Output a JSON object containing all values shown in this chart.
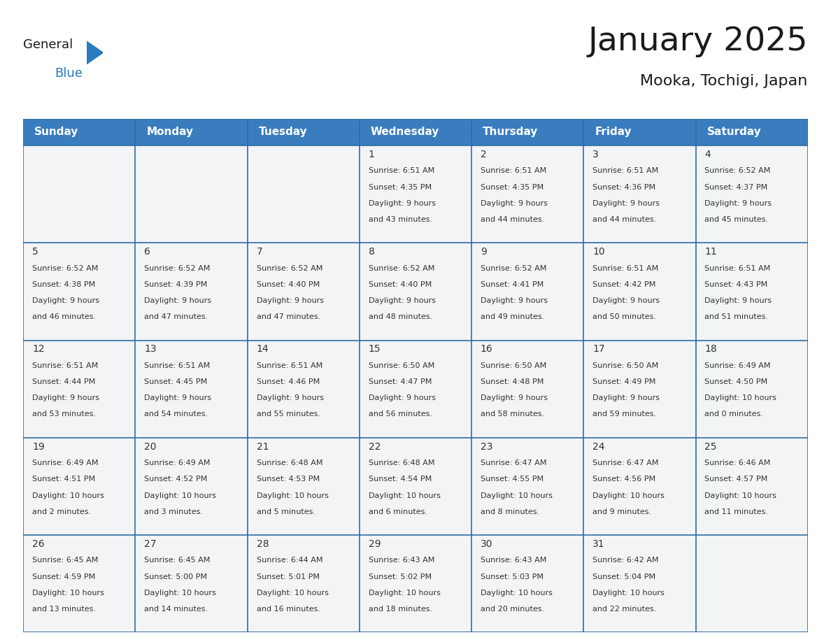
{
  "title": "January 2025",
  "subtitle": "Mooka, Tochigi, Japan",
  "days_of_week": [
    "Sunday",
    "Monday",
    "Tuesday",
    "Wednesday",
    "Thursday",
    "Friday",
    "Saturday"
  ],
  "header_bg": "#3a7dbf",
  "header_text": "#ffffff",
  "cell_bg_even": "#f2f4f6",
  "cell_bg_white": "#ffffff",
  "border_color": "#2e6da4",
  "text_color": "#333333",
  "title_color": "#1a1a1a",
  "logo_general_color": "#1a1a1a",
  "logo_blue_color": "#2a7abf",
  "calendar": [
    [
      null,
      null,
      null,
      {
        "day": "1",
        "sunrise": "6:51 AM",
        "sunset": "4:35 PM",
        "dl1": "Daylight: 9 hours",
        "dl2": "and 43 minutes."
      },
      {
        "day": "2",
        "sunrise": "6:51 AM",
        "sunset": "4:35 PM",
        "dl1": "Daylight: 9 hours",
        "dl2": "and 44 minutes."
      },
      {
        "day": "3",
        "sunrise": "6:51 AM",
        "sunset": "4:36 PM",
        "dl1": "Daylight: 9 hours",
        "dl2": "and 44 minutes."
      },
      {
        "day": "4",
        "sunrise": "6:52 AM",
        "sunset": "4:37 PM",
        "dl1": "Daylight: 9 hours",
        "dl2": "and 45 minutes."
      }
    ],
    [
      {
        "day": "5",
        "sunrise": "6:52 AM",
        "sunset": "4:38 PM",
        "dl1": "Daylight: 9 hours",
        "dl2": "and 46 minutes."
      },
      {
        "day": "6",
        "sunrise": "6:52 AM",
        "sunset": "4:39 PM",
        "dl1": "Daylight: 9 hours",
        "dl2": "and 47 minutes."
      },
      {
        "day": "7",
        "sunrise": "6:52 AM",
        "sunset": "4:40 PM",
        "dl1": "Daylight: 9 hours",
        "dl2": "and 47 minutes."
      },
      {
        "day": "8",
        "sunrise": "6:52 AM",
        "sunset": "4:40 PM",
        "dl1": "Daylight: 9 hours",
        "dl2": "and 48 minutes."
      },
      {
        "day": "9",
        "sunrise": "6:52 AM",
        "sunset": "4:41 PM",
        "dl1": "Daylight: 9 hours",
        "dl2": "and 49 minutes."
      },
      {
        "day": "10",
        "sunrise": "6:51 AM",
        "sunset": "4:42 PM",
        "dl1": "Daylight: 9 hours",
        "dl2": "and 50 minutes."
      },
      {
        "day": "11",
        "sunrise": "6:51 AM",
        "sunset": "4:43 PM",
        "dl1": "Daylight: 9 hours",
        "dl2": "and 51 minutes."
      }
    ],
    [
      {
        "day": "12",
        "sunrise": "6:51 AM",
        "sunset": "4:44 PM",
        "dl1": "Daylight: 9 hours",
        "dl2": "and 53 minutes."
      },
      {
        "day": "13",
        "sunrise": "6:51 AM",
        "sunset": "4:45 PM",
        "dl1": "Daylight: 9 hours",
        "dl2": "and 54 minutes."
      },
      {
        "day": "14",
        "sunrise": "6:51 AM",
        "sunset": "4:46 PM",
        "dl1": "Daylight: 9 hours",
        "dl2": "and 55 minutes."
      },
      {
        "day": "15",
        "sunrise": "6:50 AM",
        "sunset": "4:47 PM",
        "dl1": "Daylight: 9 hours",
        "dl2": "and 56 minutes."
      },
      {
        "day": "16",
        "sunrise": "6:50 AM",
        "sunset": "4:48 PM",
        "dl1": "Daylight: 9 hours",
        "dl2": "and 58 minutes."
      },
      {
        "day": "17",
        "sunrise": "6:50 AM",
        "sunset": "4:49 PM",
        "dl1": "Daylight: 9 hours",
        "dl2": "and 59 minutes."
      },
      {
        "day": "18",
        "sunrise": "6:49 AM",
        "sunset": "4:50 PM",
        "dl1": "Daylight: 10 hours",
        "dl2": "and 0 minutes."
      }
    ],
    [
      {
        "day": "19",
        "sunrise": "6:49 AM",
        "sunset": "4:51 PM",
        "dl1": "Daylight: 10 hours",
        "dl2": "and 2 minutes."
      },
      {
        "day": "20",
        "sunrise": "6:49 AM",
        "sunset": "4:52 PM",
        "dl1": "Daylight: 10 hours",
        "dl2": "and 3 minutes."
      },
      {
        "day": "21",
        "sunrise": "6:48 AM",
        "sunset": "4:53 PM",
        "dl1": "Daylight: 10 hours",
        "dl2": "and 5 minutes."
      },
      {
        "day": "22",
        "sunrise": "6:48 AM",
        "sunset": "4:54 PM",
        "dl1": "Daylight: 10 hours",
        "dl2": "and 6 minutes."
      },
      {
        "day": "23",
        "sunrise": "6:47 AM",
        "sunset": "4:55 PM",
        "dl1": "Daylight: 10 hours",
        "dl2": "and 8 minutes."
      },
      {
        "day": "24",
        "sunrise": "6:47 AM",
        "sunset": "4:56 PM",
        "dl1": "Daylight: 10 hours",
        "dl2": "and 9 minutes."
      },
      {
        "day": "25",
        "sunrise": "6:46 AM",
        "sunset": "4:57 PM",
        "dl1": "Daylight: 10 hours",
        "dl2": "and 11 minutes."
      }
    ],
    [
      {
        "day": "26",
        "sunrise": "6:45 AM",
        "sunset": "4:59 PM",
        "dl1": "Daylight: 10 hours",
        "dl2": "and 13 minutes."
      },
      {
        "day": "27",
        "sunrise": "6:45 AM",
        "sunset": "5:00 PM",
        "dl1": "Daylight: 10 hours",
        "dl2": "and 14 minutes."
      },
      {
        "day": "28",
        "sunrise": "6:44 AM",
        "sunset": "5:01 PM",
        "dl1": "Daylight: 10 hours",
        "dl2": "and 16 minutes."
      },
      {
        "day": "29",
        "sunrise": "6:43 AM",
        "sunset": "5:02 PM",
        "dl1": "Daylight: 10 hours",
        "dl2": "and 18 minutes."
      },
      {
        "day": "30",
        "sunrise": "6:43 AM",
        "sunset": "5:03 PM",
        "dl1": "Daylight: 10 hours",
        "dl2": "and 20 minutes."
      },
      {
        "day": "31",
        "sunrise": "6:42 AM",
        "sunset": "5:04 PM",
        "dl1": "Daylight: 10 hours",
        "dl2": "and 22 minutes."
      },
      null
    ]
  ]
}
